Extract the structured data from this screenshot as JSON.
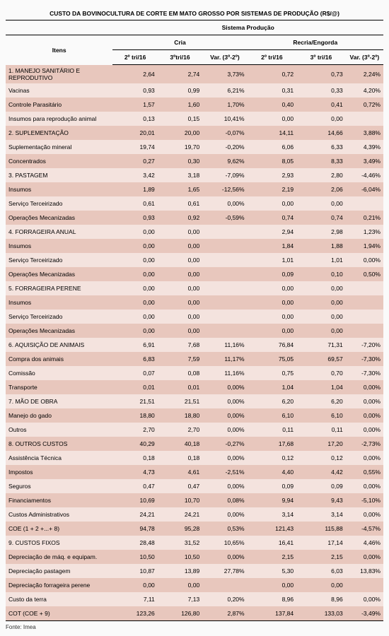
{
  "title": "CUSTO DA BOVINOCULTURA DE CORTE EM MATO GROSSO POR SISTEMAS DE PRODUÇÃO (R$/@)",
  "supHeader": "Sistema Produção",
  "groupHeaders": {
    "itens": "Itens",
    "cria": "Cria",
    "recria": "Recria/Engorda"
  },
  "colHeaders": {
    "c1": "2º tri/16",
    "c2": "3ºtri/16",
    "c3": "Var. (3º-2º)",
    "c4": "2º tri/16",
    "c5": "3º tri/16",
    "c6": "Var. (3º-2º)"
  },
  "rows": [
    {
      "label": "1. MANEJO SANITÁRIO E REPRODUTIVO",
      "v": [
        "2,64",
        "2,74",
        "3,73%",
        "0,72",
        "0,73",
        "2,24%"
      ]
    },
    {
      "label": "Vacinas",
      "v": [
        "0,93",
        "0,99",
        "6,21%",
        "0,31",
        "0,33",
        "4,20%"
      ]
    },
    {
      "label": "Controle Parasitário",
      "v": [
        "1,57",
        "1,60",
        "1,70%",
        "0,40",
        "0,41",
        "0,72%"
      ]
    },
    {
      "label": "Insumos para reprodução animal",
      "v": [
        "0,13",
        "0,15",
        "10,41%",
        "0,00",
        "0,00",
        ""
      ]
    },
    {
      "label": "2. SUPLEMENTAÇÃO",
      "v": [
        "20,01",
        "20,00",
        "-0,07%",
        "14,11",
        "14,66",
        "3,88%"
      ]
    },
    {
      "label": "Suplementação mineral",
      "v": [
        "19,74",
        "19,70",
        "-0,20%",
        "6,06",
        "6,33",
        "4,39%"
      ]
    },
    {
      "label": "Concentrados",
      "v": [
        "0,27",
        "0,30",
        "9,62%",
        "8,05",
        "8,33",
        "3,49%"
      ]
    },
    {
      "label": "3. PASTAGEM",
      "v": [
        "3,42",
        "3,18",
        "-7,09%",
        "2,93",
        "2,80",
        "-4,46%"
      ]
    },
    {
      "label": "Insumos",
      "v": [
        "1,89",
        "1,65",
        "-12,56%",
        "2,19",
        "2,06",
        "-6,04%"
      ]
    },
    {
      "label": "Serviço Terceirizado",
      "v": [
        "0,61",
        "0,61",
        "0,00%",
        "0,00",
        "0,00",
        ""
      ]
    },
    {
      "label": "Operações Mecanizadas",
      "v": [
        "0,93",
        "0,92",
        "-0,59%",
        "0,74",
        "0,74",
        "0,21%"
      ]
    },
    {
      "label": "4. FORRAGEIRA ANUAL",
      "v": [
        "0,00",
        "0,00",
        "",
        "2,94",
        "2,98",
        "1,23%"
      ]
    },
    {
      "label": "Insumos",
      "v": [
        "0,00",
        "0,00",
        "",
        "1,84",
        "1,88",
        "1,94%"
      ]
    },
    {
      "label": "Serviço Terceirizado",
      "v": [
        "0,00",
        "0,00",
        "",
        "1,01",
        "1,01",
        "0,00%"
      ]
    },
    {
      "label": "Operações Mecanizadas",
      "v": [
        "0,00",
        "0,00",
        "",
        "0,09",
        "0,10",
        "0,50%"
      ]
    },
    {
      "label": "5. FORRAGEIRA PERENE",
      "v": [
        "0,00",
        "0,00",
        "",
        "0,00",
        "0,00",
        ""
      ]
    },
    {
      "label": "Insumos",
      "v": [
        "0,00",
        "0,00",
        "",
        "0,00",
        "0,00",
        ""
      ]
    },
    {
      "label": "Serviço Terceirizado",
      "v": [
        "0,00",
        "0,00",
        "",
        "0,00",
        "0,00",
        ""
      ]
    },
    {
      "label": "Operações Mecanizadas",
      "v": [
        "0,00",
        "0,00",
        "",
        "0,00",
        "0,00",
        ""
      ]
    },
    {
      "label": "6. AQUISIÇÃO DE ANIMAIS",
      "v": [
        "6,91",
        "7,68",
        "11,16%",
        "76,84",
        "71,31",
        "-7,20%"
      ]
    },
    {
      "label": "Compra dos animais",
      "v": [
        "6,83",
        "7,59",
        "11,17%",
        "75,05",
        "69,57",
        "-7,30%"
      ]
    },
    {
      "label": "Comissão",
      "v": [
        "0,07",
        "0,08",
        "11,16%",
        "0,75",
        "0,70",
        "-7,30%"
      ]
    },
    {
      "label": "Transporte",
      "v": [
        "0,01",
        "0,01",
        "0,00%",
        "1,04",
        "1,04",
        "0,00%"
      ]
    },
    {
      "label": "7. MÃO DE OBRA",
      "v": [
        "21,51",
        "21,51",
        "0,00%",
        "6,20",
        "6,20",
        "0,00%"
      ]
    },
    {
      "label": "Manejo do gado",
      "v": [
        "18,80",
        "18,80",
        "0,00%",
        "6,10",
        "6,10",
        "0,00%"
      ]
    },
    {
      "label": "Outros",
      "v": [
        "2,70",
        "2,70",
        "0,00%",
        "0,11",
        "0,11",
        "0,00%"
      ]
    },
    {
      "label": "8. OUTROS CUSTOS",
      "v": [
        "40,29",
        "40,18",
        "-0,27%",
        "17,68",
        "17,20",
        "-2,73%"
      ]
    },
    {
      "label": "Assistência Técnica",
      "v": [
        "0,18",
        "0,18",
        "0,00%",
        "0,12",
        "0,12",
        "0,00%"
      ]
    },
    {
      "label": "Impostos",
      "v": [
        "4,73",
        "4,61",
        "-2,51%",
        "4,40",
        "4,42",
        "0,55%"
      ]
    },
    {
      "label": "Seguros",
      "v": [
        "0,47",
        "0,47",
        "0,00%",
        "0,09",
        "0,09",
        "0,00%"
      ]
    },
    {
      "label": "Financiamentos",
      "v": [
        "10,69",
        "10,70",
        "0,08%",
        "9,94",
        "9,43",
        "-5,10%"
      ]
    },
    {
      "label": "Custos Administrativos",
      "v": [
        "24,21",
        "24,21",
        "0,00%",
        "3,14",
        "3,14",
        "0,00%"
      ]
    },
    {
      "label": "COE (1 + 2 +...+ 8)",
      "v": [
        "94,78",
        "95,28",
        "0,53%",
        "121,43",
        "115,88",
        "-4,57%"
      ]
    },
    {
      "label": "9. CUSTOS FIXOS",
      "v": [
        "28,48",
        "31,52",
        "10,65%",
        "16,41",
        "17,14",
        "4,46%"
      ]
    },
    {
      "label": "Depreciação de máq. e equipam.",
      "v": [
        "10,50",
        "10,50",
        "0,00%",
        "2,15",
        "2,15",
        "0,00%"
      ]
    },
    {
      "label": "Depreciação pastagem",
      "v": [
        "10,87",
        "13,89",
        "27,78%",
        "5,30",
        "6,03",
        "13,83%"
      ]
    },
    {
      "label": "Depreciação forrageira perene",
      "v": [
        "0,00",
        "0,00",
        "",
        "0,00",
        "0,00",
        ""
      ]
    },
    {
      "label": "Custo da terra",
      "v": [
        "7,11",
        "7,13",
        "0,20%",
        "8,96",
        "8,96",
        "0,00%"
      ]
    },
    {
      "label": "COT (COE + 9)",
      "v": [
        "123,26",
        "126,80",
        "2,87%",
        "137,84",
        "133,03",
        "-3,49%"
      ]
    }
  ],
  "source": "Fonte: Imea",
  "colors": {
    "row0": "#e8c7bd",
    "row1": "#f4e3de",
    "border": "#000000"
  }
}
